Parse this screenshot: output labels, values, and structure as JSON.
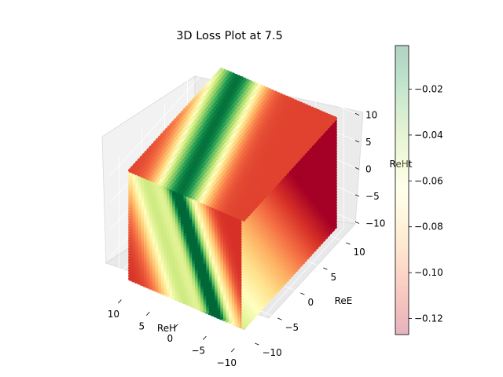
{
  "figure": {
    "title": "3D Loss Plot at 7.5"
  },
  "chart_data": {
    "type": "scatter",
    "title": "3D Loss Plot at 7.5",
    "xlabel": "ReH",
    "ylabel": "ReE",
    "zlabel": "ReHt",
    "xlim": [
      -10,
      10
    ],
    "ylim": [
      -10,
      10
    ],
    "zlim": [
      -10,
      10
    ],
    "xticks": [
      -10,
      -5,
      0,
      5,
      10
    ],
    "yticks": [
      -10,
      -5,
      0,
      5,
      10
    ],
    "zticks": [
      -10,
      -5,
      0,
      5,
      10
    ],
    "tick_labels": {
      "x": [
        "−10",
        "−5",
        "0",
        "5",
        "10"
      ],
      "y": [
        "−10",
        "−5",
        "0",
        "5",
        "10"
      ],
      "z": [
        "−10",
        "−5",
        "0",
        "5",
        "10"
      ]
    },
    "colorbar": {
      "range": [
        -0.127,
        -0.001
      ],
      "ticks": [
        -0.02,
        -0.04,
        -0.06,
        -0.08,
        -0.1,
        -0.12
      ],
      "tick_labels": [
        "−0.02",
        "−0.04",
        "−0.06",
        "−0.08",
        "−0.10",
        "−0.12"
      ],
      "colormap": "RdYlGn",
      "alpha": 0.3
    },
    "grid": true
  }
}
